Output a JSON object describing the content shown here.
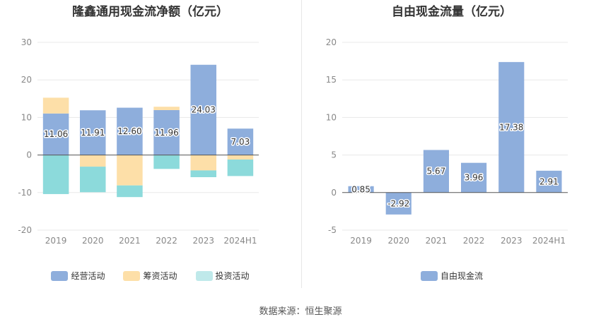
{
  "chart_data": [
    {
      "type": "bar",
      "stacked": true,
      "title": "隆鑫通用现金流净额（亿元）",
      "categories": [
        "2019",
        "2020",
        "2021",
        "2022",
        "2023",
        "2024H1"
      ],
      "ylim": [
        -20,
        30
      ],
      "yticks": [
        -20,
        -10,
        0,
        10,
        20,
        30
      ],
      "grid": true,
      "legend_position": "bottom",
      "series": [
        {
          "name": "经营活动",
          "color": "#8eaedc",
          "values": [
            11.06,
            11.91,
            12.6,
            11.96,
            24.03,
            7.03
          ],
          "labels": [
            "11.06",
            "11.91",
            "12.60",
            "11.96",
            "24.03",
            "7.03"
          ]
        },
        {
          "name": "筹资活动",
          "color": "#fddfa8",
          "values": [
            4.2,
            -3.1,
            -8.1,
            0.9,
            -4.1,
            -1.2
          ]
        },
        {
          "name": "投资活动",
          "color": "#8cdadb",
          "values": [
            -10.4,
            -6.8,
            -3.1,
            -3.7,
            -1.8,
            -4.4
          ]
        }
      ]
    },
    {
      "type": "bar",
      "title": "自由现金流量（亿元）",
      "categories": [
        "2019",
        "2020",
        "2021",
        "2022",
        "2023",
        "2024H1"
      ],
      "ylim": [
        -5,
        20
      ],
      "yticks": [
        -5,
        0,
        5,
        10,
        15,
        20
      ],
      "grid": true,
      "legend_position": "bottom",
      "series": [
        {
          "name": "自由现金流",
          "color": "#8eaedc",
          "values": [
            0.85,
            -2.92,
            5.67,
            3.96,
            17.38,
            2.91
          ],
          "labels": [
            "0.85",
            "-2.92",
            "5.67",
            "3.96",
            "17.38",
            "2.91"
          ]
        }
      ]
    }
  ],
  "source": "数据来源：恒生聚源"
}
